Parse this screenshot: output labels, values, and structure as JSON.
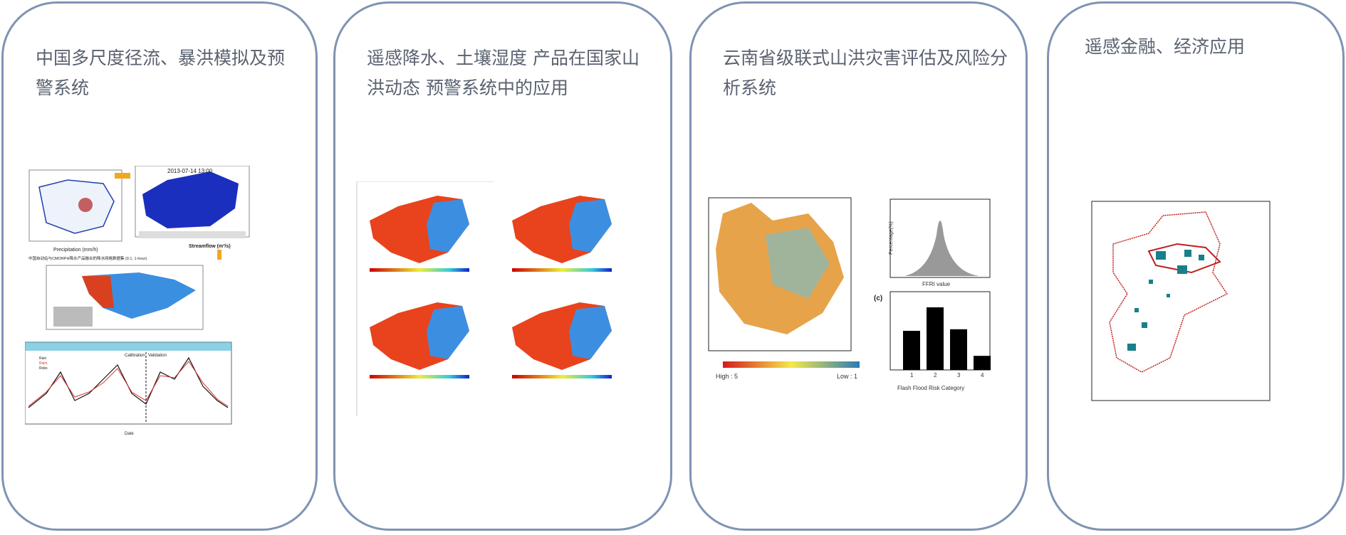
{
  "cards": [
    {
      "title": "中国多尺度径流、暴洪模拟及预警系统",
      "figure": {
        "map_timestamp": "2013-07-14 13:00",
        "precip_label": "Precipitation (mm/h)",
        "product_caption": "中国自动站与CMORPH降水产品融合的降水网格数据集 (0.1, 1-hour)",
        "streamflow_label": "Streamflow (m³/s)",
        "hydrograph_labels": [
          "Calibration",
          "Validation"
        ],
        "x_axis_label": "Date",
        "legend": [
          "Rain",
          "Rsim",
          "Robs"
        ]
      }
    },
    {
      "title": "遥感降水、土壤湿度 产品在国家山洪动态 预警系统中的应用"
    },
    {
      "title": "云南省级联式山洪灾害评估及风险分析系统",
      "figure": {
        "colorbar_high": "High : 5",
        "colorbar_low": "Low : 1",
        "hist_xlabel": "FFRI value",
        "hist_ylabel": "Percentage(%)",
        "panel_label": "(c)",
        "bar_xlabel": "Flash Flood Risk Category",
        "bar_categories": [
          "1",
          "2",
          "3",
          "4"
        ],
        "bar_values": [
          25,
          40,
          26,
          9
        ]
      }
    },
    {
      "title": "遥感金融、经济应用"
    }
  ],
  "colors": {
    "card_border": "#8093b3",
    "title_text": "#5a6270"
  }
}
